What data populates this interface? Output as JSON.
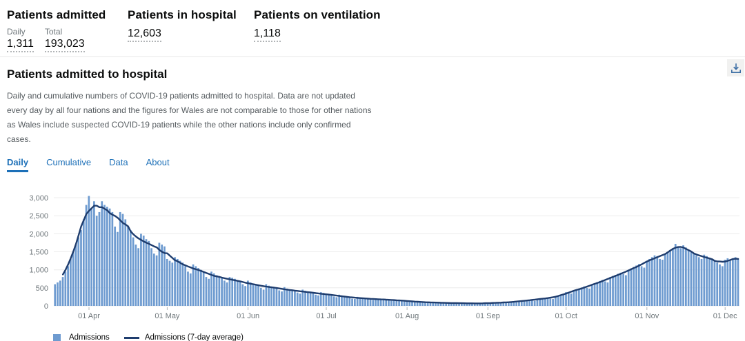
{
  "colors": {
    "accent_blue": "#1d70b8",
    "bar": "#6e9bd0",
    "line": "#1f3d6e",
    "grid": "#ececec",
    "axis_text": "#6f777b",
    "tick": "#b1b4b6",
    "download_icon": "#3d6fa5"
  },
  "stats": {
    "admitted": {
      "title": "Patients admitted",
      "daily_label": "Daily",
      "daily_value": "1,311",
      "total_label": "Total",
      "total_value": "193,023"
    },
    "in_hospital": {
      "title": "Patients in hospital",
      "value": "12,603"
    },
    "ventilation": {
      "title": "Patients on ventilation",
      "value": "1,118"
    }
  },
  "card": {
    "title": "Patients admitted to hospital",
    "description": "Daily and cumulative numbers of COVID-19 patients admitted to hospital. Data are not updated every day by all four nations and the figures for Wales are not comparable to those for other nations as Wales include suspected COVID-19 patients while the other nations include only confirmed cases.",
    "tabs": [
      {
        "label": "Daily",
        "active": true
      },
      {
        "label": "Cumulative",
        "active": false
      },
      {
        "label": "Data",
        "active": false
      },
      {
        "label": "About",
        "active": false
      }
    ],
    "download_icon": "download-icon"
  },
  "legend": {
    "bar_label": "Admissions",
    "line_label": "Admissions (7-day average)"
  },
  "chart_data": {
    "type": "bar",
    "title": "Patients admitted to hospital (Daily)",
    "xlabel": "",
    "ylabel": "",
    "ylim": [
      0,
      3000
    ],
    "grid": "horizontal",
    "legend_position": "bottom-left",
    "start_date": "2020-03-19",
    "frequency": "daily",
    "y_ticks": [
      0,
      500,
      1000,
      1500,
      2000,
      2500,
      3000
    ],
    "y_tick_labels": [
      "0",
      "500",
      "1,000",
      "1,500",
      "2,000",
      "2,500",
      "3,000"
    ],
    "x_ticks": [
      {
        "label": "01 Apr",
        "index": 13
      },
      {
        "label": "01 May",
        "index": 43
      },
      {
        "label": "01 Jun",
        "index": 74
      },
      {
        "label": "01 Jul",
        "index": 104
      },
      {
        "label": "01 Aug",
        "index": 135
      },
      {
        "label": "01 Sep",
        "index": 166
      },
      {
        "label": "01 Oct",
        "index": 196
      },
      {
        "label": "01 Nov",
        "index": 227
      },
      {
        "label": "01 Dec",
        "index": 257
      }
    ],
    "series": [
      {
        "name": "Admissions",
        "type": "bar",
        "values": [
          600,
          650,
          700,
          800,
          950,
          1100,
          1300,
          1500,
          1700,
          1900,
          2100,
          2400,
          2800,
          3050,
          2700,
          2900,
          2500,
          2600,
          2900,
          2800,
          2750,
          2700,
          2600,
          2200,
          2050,
          2600,
          2550,
          2400,
          2200,
          2100,
          1900,
          1700,
          1600,
          2000,
          1950,
          1850,
          1800,
          1600,
          1450,
          1400,
          1750,
          1700,
          1650,
          1300,
          1250,
          1200,
          1350,
          1300,
          1250,
          1200,
          1100,
          950,
          900,
          1150,
          1100,
          1050,
          1000,
          950,
          800,
          750,
          950,
          900,
          850,
          800,
          780,
          700,
          650,
          800,
          780,
          750,
          700,
          680,
          600,
          550,
          700,
          650,
          620,
          600,
          580,
          500,
          450,
          600,
          560,
          540,
          520,
          500,
          430,
          400,
          520,
          480,
          460,
          440,
          420,
          370,
          340,
          450,
          420,
          400,
          380,
          360,
          310,
          290,
          380,
          360,
          340,
          320,
          300,
          260,
          240,
          310,
          290,
          270,
          250,
          240,
          200,
          190,
          250,
          240,
          220,
          210,
          200,
          170,
          160,
          210,
          200,
          190,
          180,
          170,
          150,
          140,
          180,
          170,
          160,
          150,
          140,
          120,
          110,
          140,
          130,
          120,
          110,
          100,
          90,
          85,
          110,
          100,
          95,
          90,
          85,
          75,
          70,
          90,
          85,
          80,
          80,
          75,
          65,
          60,
          80,
          75,
          75,
          70,
          70,
          60,
          55,
          75,
          80,
          85,
          90,
          80,
          70,
          90,
          95,
          100,
          110,
          120,
          100,
          95,
          130,
          140,
          150,
          160,
          170,
          150,
          140,
          190,
          200,
          210,
          220,
          230,
          200,
          190,
          260,
          280,
          300,
          320,
          380,
          360,
          340,
          420,
          450,
          480,
          510,
          540,
          500,
          480,
          600,
          630,
          660,
          690,
          720,
          680,
          650,
          800,
          830,
          860,
          890,
          920,
          880,
          850,
          1000,
          1040,
          1080,
          1120,
          1160,
          1100,
          1060,
          1250,
          1300,
          1350,
          1400,
          1380,
          1300,
          1280,
          1450,
          1500,
          1550,
          1600,
          1720,
          1650,
          1600,
          1680,
          1620,
          1560,
          1500,
          1450,
          1400,
          1350,
          1300,
          1420,
          1380,
          1340,
          1300,
          1260,
          1200,
          1150,
          1100,
          1280,
          1320,
          1250,
          1300,
          1350,
          1311
        ]
      },
      {
        "name": "Admissions (7-day average)",
        "type": "line",
        "derived_from": "Admissions",
        "window": 7
      }
    ]
  }
}
